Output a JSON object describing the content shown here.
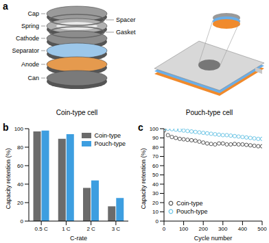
{
  "diagram": {
    "label": "a",
    "coin_parts": [
      "Cap",
      "Spring",
      "Cathode",
      "Separator",
      "Anode",
      "Can"
    ],
    "coin_parts_right": [
      "Spacer",
      "Gasket"
    ],
    "captions": [
      "Coin-type cell",
      "Pouch-type cell"
    ]
  },
  "chart_data": [
    {
      "type": "bar",
      "annotations": [
        "b"
      ],
      "x_label": "C-rate",
      "y_label": "Capacity retention (%)",
      "categories": [
        "0.5 C",
        "1 C",
        "2 C",
        "3 C"
      ],
      "series": [
        {
          "name": "Coin-type",
          "color": "#6b6b6b",
          "values": [
            97,
            89,
            36,
            16
          ]
        },
        {
          "name": "Pouch-type",
          "color": "#3d9ee0",
          "values": [
            98,
            94,
            44,
            25
          ]
        }
      ],
      "ylim": [
        0,
        100
      ],
      "yticks": [
        0,
        20,
        40,
        60,
        80,
        100
      ],
      "legend": "upper right"
    },
    {
      "type": "scatter",
      "annotations": [
        "c"
      ],
      "x_label": "Cycle number",
      "y_label": "Capacity retention (%)",
      "x": [
        0,
        20,
        40,
        60,
        80,
        100,
        120,
        140,
        160,
        180,
        200,
        220,
        240,
        260,
        280,
        300,
        320,
        340,
        360,
        380,
        400,
        420,
        440,
        460,
        480,
        500
      ],
      "series": [
        {
          "name": "Coin-type",
          "color": "#555555",
          "marker": "circle",
          "values": [
            98,
            93,
            91,
            90,
            89,
            88.5,
            88,
            87.5,
            87,
            86,
            85,
            84,
            83.5,
            83,
            84,
            84,
            83,
            83,
            83.5,
            83,
            83,
            82.5,
            82,
            81.5,
            81,
            81
          ]
        },
        {
          "name": "Pouch-type",
          "color": "#6ec6e6",
          "marker": "circle",
          "values": [
            100,
            100,
            99.5,
            99,
            98.5,
            98,
            97.5,
            97,
            96.5,
            96,
            95.5,
            95,
            94.5,
            94,
            93.5,
            93,
            93,
            92.5,
            92,
            91.5,
            91,
            90.5,
            90,
            89.5,
            89,
            89
          ]
        }
      ],
      "xlim": [
        0,
        500
      ],
      "xticks": [
        0,
        100,
        200,
        300,
        400,
        500
      ],
      "ylim": [
        0,
        100
      ],
      "yticks": [
        0,
        10,
        20,
        30,
        40,
        50,
        60,
        70,
        80,
        90,
        100
      ],
      "legend": "lower left"
    }
  ]
}
